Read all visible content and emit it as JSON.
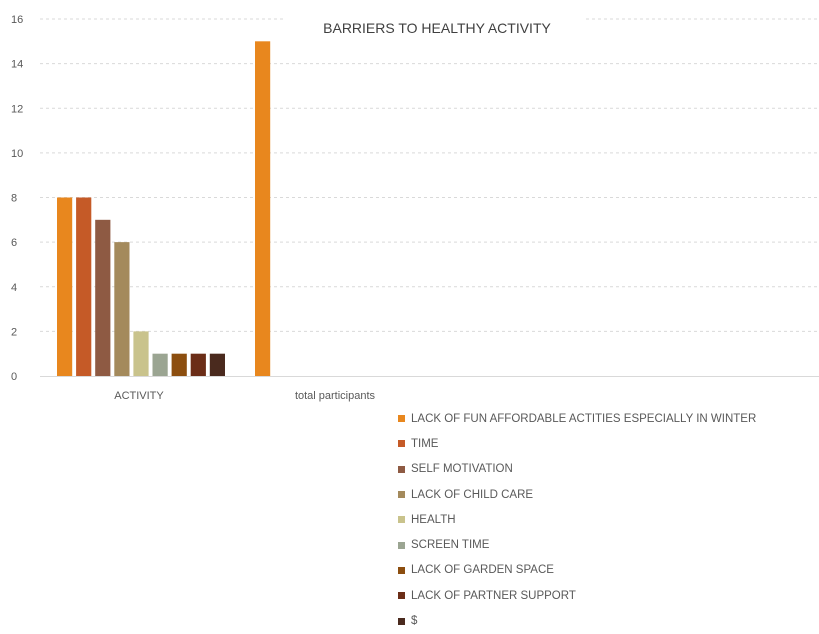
{
  "chart_data": {
    "type": "bar",
    "title": "BARRIERS TO HEALTHY ACTIVITY",
    "categories": [
      "ACTIVITY",
      "total participants"
    ],
    "ylim": [
      0,
      16
    ],
    "yticks": [
      0,
      2,
      4,
      6,
      8,
      10,
      12,
      14,
      16
    ],
    "grid": true,
    "legend_position": "bottom",
    "series": [
      {
        "name": "LACK OF FUN AFFORDABLE ACTITIES ESPECIALLY IN WINTER",
        "color": "#E8871E",
        "values": [
          8,
          15
        ]
      },
      {
        "name": "TIME",
        "color": "#C55A27",
        "values": [
          8,
          null
        ]
      },
      {
        "name": "SELF MOTIVATION",
        "color": "#8E5A43",
        "values": [
          7,
          null
        ]
      },
      {
        "name": "LACK OF CHILD CARE",
        "color": "#A48A5C",
        "values": [
          6,
          null
        ]
      },
      {
        "name": "HEALTH",
        "color": "#C9C38C",
        "values": [
          2,
          null
        ]
      },
      {
        "name": "SCREEN TIME",
        "color": "#9BA592",
        "values": [
          1,
          null
        ]
      },
      {
        "name": "LACK OF GARDEN SPACE",
        "color": "#8C4E0F",
        "values": [
          1,
          null
        ]
      },
      {
        "name": "LACK OF PARTNER SUPPORT",
        "color": "#6B2D17",
        "values": [
          1,
          null
        ]
      },
      {
        "name": "$",
        "color": "#4A2A1E",
        "values": [
          1,
          null
        ]
      }
    ]
  }
}
